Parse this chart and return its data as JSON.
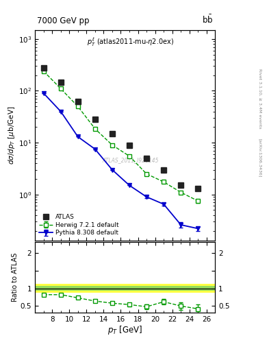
{
  "title_top": "7000 GeV pp",
  "annotation": "p_{T}^{l} (atlas2011-mu-\\eta2.0ex)",
  "watermark": "ATLAS_2011_I926145",
  "right_label": "Rivet 3.1.10, ≥ 3.4M events",
  "arxiv_label": "[arXiv:1306.3436]",
  "ylabel_main": "dσ/dp_T [μb/GeV]",
  "ylabel_ratio": "Ratio to ATLAS",
  "xlabel": "p_T [GeV]",
  "xlim": [
    6.0,
    27.0
  ],
  "ylim_main": [
    0.13,
    1500
  ],
  "ylim_ratio": [
    0.32,
    2.3
  ],
  "atlas_x": [
    7,
    9,
    11,
    13,
    15,
    17,
    19,
    21,
    23,
    25
  ],
  "atlas_y": [
    280,
    145,
    63,
    28,
    15,
    9.0,
    5.0,
    3.0,
    1.5,
    1.3
  ],
  "herwig_x": [
    7,
    9,
    11,
    13,
    15,
    17,
    19,
    21,
    23,
    25
  ],
  "herwig_y": [
    240,
    110,
    50,
    18.5,
    9.0,
    5.5,
    2.5,
    1.75,
    1.1,
    0.75
  ],
  "herwig_yerr": [
    8,
    4,
    1.8,
    0.7,
    0.35,
    0.22,
    0.12,
    0.09,
    0.07,
    0.06
  ],
  "pythia_x": [
    7,
    9,
    11,
    13,
    15,
    17,
    19,
    21,
    23,
    25
  ],
  "pythia_y": [
    90,
    40,
    13,
    7.5,
    3.0,
    1.5,
    0.9,
    0.65,
    0.26,
    0.22
  ],
  "pythia_yerr": [
    0,
    0,
    0,
    0,
    0,
    0,
    0.04,
    0.04,
    0.03,
    0.02
  ],
  "ratio_herwig_x": [
    7,
    9,
    11,
    13,
    15,
    17,
    19,
    21,
    23,
    25
  ],
  "ratio_herwig_y": [
    0.82,
    0.82,
    0.73,
    0.64,
    0.58,
    0.54,
    0.48,
    0.62,
    0.5,
    0.42
  ],
  "ratio_herwig_yerr": [
    0.03,
    0.03,
    0.03,
    0.03,
    0.04,
    0.05,
    0.07,
    0.08,
    0.1,
    0.13
  ],
  "band_green_lo": 0.94,
  "band_green_hi": 1.06,
  "band_yellow_lo": 0.88,
  "band_yellow_hi": 1.12,
  "color_atlas": "#222222",
  "color_herwig": "#009900",
  "color_pythia": "#0000cc",
  "color_band_green": "#66cc66",
  "color_band_yellow": "#ffff44"
}
